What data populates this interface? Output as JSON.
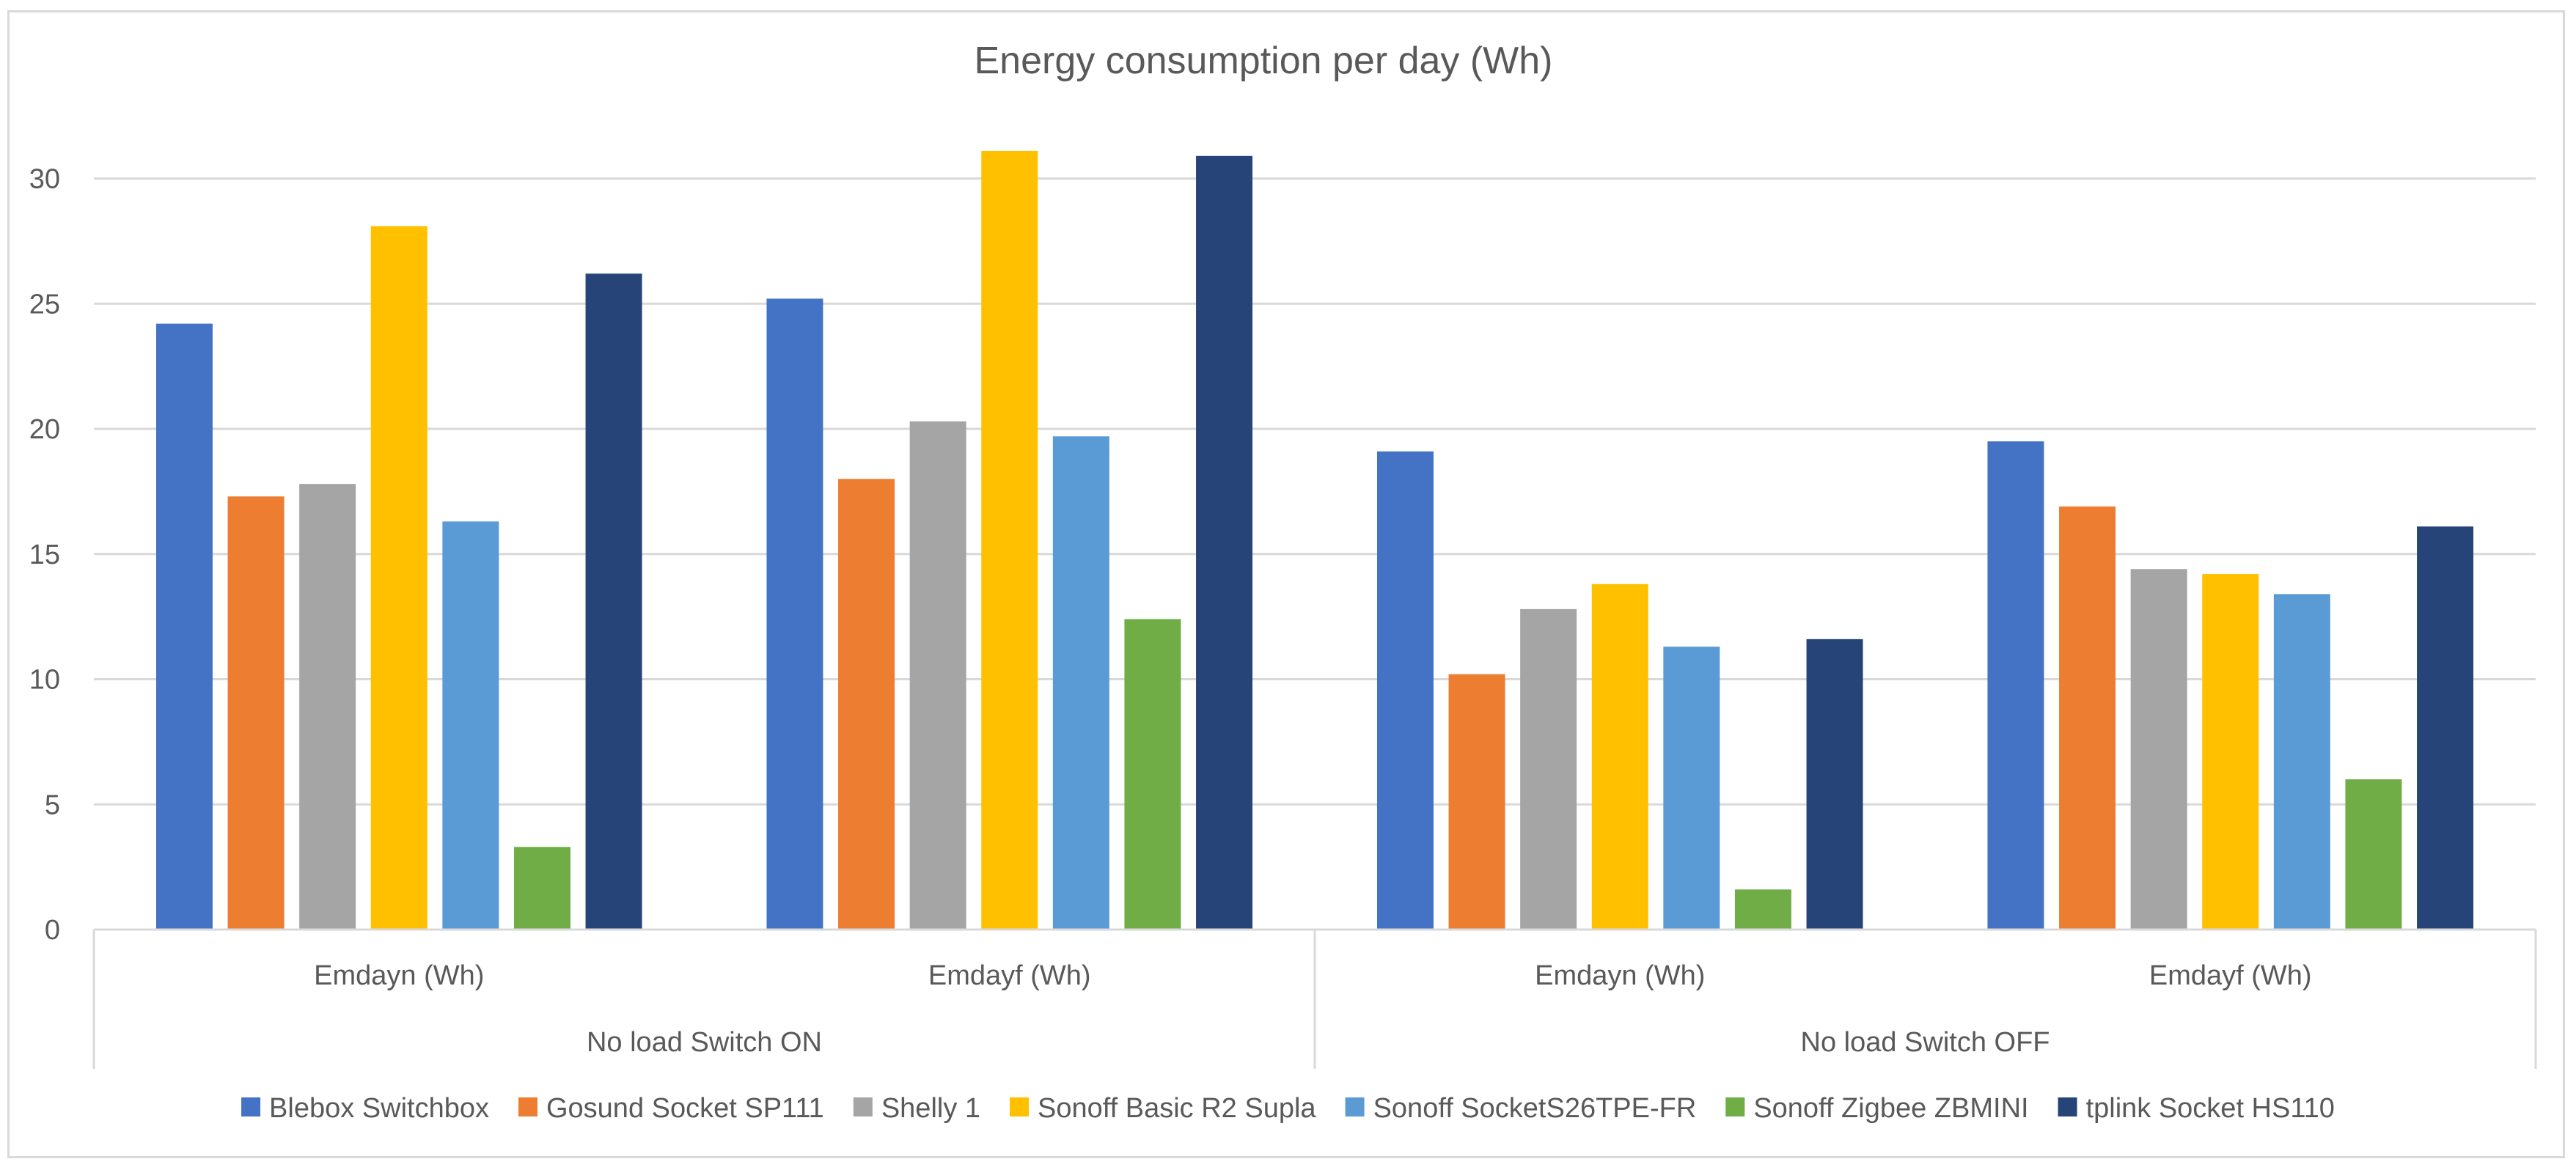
{
  "chart_data": {
    "type": "bar",
    "title": "Energy consumption per day  (Wh)",
    "xlabel": "",
    "ylabel": "",
    "ylim": [
      0,
      30
    ],
    "yticks": [
      0,
      5,
      10,
      15,
      20,
      25,
      30
    ],
    "grid": true,
    "legend_position": "bottom",
    "groups": [
      {
        "label": "No load Switch ON",
        "categories": [
          "Emdayn (Wh)",
          "Emdayf (Wh)"
        ]
      },
      {
        "label": "No load Switch OFF",
        "categories": [
          "Emdayn (Wh)",
          "Emdayf (Wh)"
        ]
      }
    ],
    "categories": [
      "Emdayn (Wh)",
      "Emdayf (Wh)",
      "Emdayn (Wh)",
      "Emdayf (Wh)"
    ],
    "series": [
      {
        "name": "Blebox Switchbox",
        "color": "#4472C4",
        "values": [
          24.2,
          25.2,
          19.1,
          19.5
        ]
      },
      {
        "name": "Gosund Socket SP111",
        "color": "#ED7D31",
        "values": [
          17.3,
          18.0,
          10.2,
          16.9
        ]
      },
      {
        "name": "Shelly 1",
        "color": "#A5A5A5",
        "values": [
          17.8,
          20.3,
          12.8,
          14.4
        ]
      },
      {
        "name": "Sonoff Basic R2 Supla",
        "color": "#FFC000",
        "values": [
          28.1,
          31.1,
          13.8,
          14.2
        ]
      },
      {
        "name": "Sonoff SocketS26TPE-FR",
        "color": "#5B9BD5",
        "values": [
          16.3,
          19.7,
          11.3,
          13.4
        ]
      },
      {
        "name": "Sonoff Zigbee ZBMINI",
        "color": "#70AD47",
        "values": [
          3.3,
          12.4,
          1.6,
          6.0
        ]
      },
      {
        "name": "tplink Socket HS110",
        "color": "#264478",
        "values": [
          26.2,
          30.9,
          11.6,
          16.1
        ]
      }
    ]
  }
}
